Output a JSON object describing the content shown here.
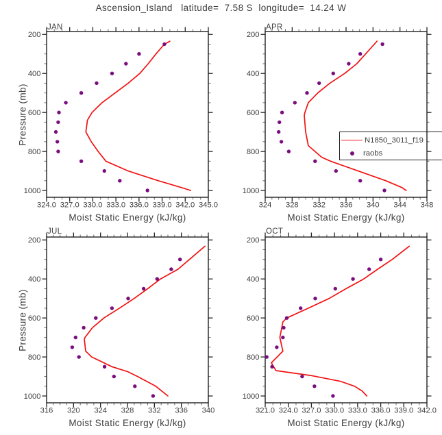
{
  "page_title": "Ascension_Island   latitude=  7.58 S  longitude=  14.24 W",
  "colors": {
    "model_line": "#f21111",
    "obs_dot": "#7a0e7e",
    "frame": "#1f1f1f",
    "text": "#3d3d3d"
  },
  "legend": {
    "entries": [
      {
        "label": "N1850_3011_f19",
        "type": "line",
        "color": "#f21111"
      },
      {
        "label": "raobs",
        "type": "dot",
        "color": "#7a0e7e"
      }
    ]
  },
  "chart_data": [
    {
      "type": "line",
      "title": "JAN",
      "xlabel": "Moist Static Energy (kJ/kg)",
      "ylabel": "Pressure (mb)",
      "xlim": [
        324,
        345
      ],
      "xtick_values": [
        324,
        327,
        330,
        333,
        336,
        339,
        342,
        345
      ],
      "xtick_labels": [
        "324.0",
        "327.0",
        "330.0",
        "333.0",
        "336.0",
        "339.0",
        "342.0",
        "345.0"
      ],
      "x_minor_step": 1,
      "ylim": [
        200,
        1000
      ],
      "y_axis_inverted": true,
      "ytick_values": [
        200,
        400,
        600,
        800,
        1000
      ],
      "ytick_labels": [
        "200",
        "400",
        "600",
        "800",
        "1000"
      ],
      "y_minor_step": 50,
      "grid": false,
      "points_format": "[pressure_mb, mse_kJ_per_kg]",
      "series": [
        {
          "name": "N1850_3011_f19",
          "type": "line",
          "color": "#f21111",
          "points": [
            [
              235,
              340.0
            ],
            [
              250,
              339.3
            ],
            [
              300,
              338.2
            ],
            [
              350,
              337.2
            ],
            [
              400,
              336.1
            ],
            [
              450,
              334.6
            ],
            [
              500,
              332.9
            ],
            [
              550,
              331.2
            ],
            [
              600,
              329.9
            ],
            [
              640,
              329.3
            ],
            [
              700,
              329.1
            ],
            [
              750,
              329.8
            ],
            [
              800,
              330.7
            ],
            [
              850,
              331.7
            ],
            [
              900,
              334.6
            ],
            [
              950,
              338.5
            ],
            [
              985,
              341.5
            ],
            [
              1000,
              342.7
            ]
          ]
        },
        {
          "name": "raobs",
          "type": "scatter",
          "color": "#7a0e7e",
          "points": [
            [
              250,
              339.3
            ],
            [
              300,
              336.0
            ],
            [
              350,
              334.3
            ],
            [
              400,
              332.5
            ],
            [
              450,
              330.5
            ],
            [
              500,
              328.5
            ],
            [
              550,
              326.5
            ],
            [
              600,
              325.6
            ],
            [
              650,
              325.5
            ],
            [
              700,
              325.2
            ],
            [
              750,
              325.4
            ],
            [
              800,
              325.5
            ],
            [
              850,
              328.5
            ],
            [
              900,
              331.5
            ],
            [
              950,
              333.5
            ],
            [
              1000,
              337.1
            ]
          ]
        }
      ]
    },
    {
      "type": "line",
      "title": "APR",
      "xlabel": "Moist Static Energy (kJ/kg)",
      "ylabel": "Pressure (mb)",
      "xlim": [
        324,
        348
      ],
      "xtick_values": [
        324,
        328,
        332,
        336,
        340,
        344,
        348
      ],
      "xtick_labels": [
        "324",
        "328",
        "332",
        "336",
        "340",
        "344",
        "348"
      ],
      "x_minor_step": 1,
      "ylim": [
        200,
        1000
      ],
      "y_axis_inverted": true,
      "ytick_values": [
        200,
        400,
        600,
        800,
        1000
      ],
      "ytick_labels": [
        "200",
        "400",
        "600",
        "800",
        "1000"
      ],
      "y_minor_step": 50,
      "grid": false,
      "points_format": "[pressure_mb, mse_kJ_per_kg]",
      "series": [
        {
          "name": "N1850_3011_f19",
          "type": "line",
          "color": "#f21111",
          "points": [
            [
              234,
              340.6
            ],
            [
              250,
              340.2
            ],
            [
              300,
              338.9
            ],
            [
              350,
              337.6
            ],
            [
              400,
              335.8
            ],
            [
              450,
              333.6
            ],
            [
              500,
              331.8
            ],
            [
              550,
              330.4
            ],
            [
              600,
              329.9
            ],
            [
              615,
              329.8
            ],
            [
              700,
              330.0
            ],
            [
              770,
              330.4
            ],
            [
              830,
              332.4
            ],
            [
              850,
              333.7
            ],
            [
              900,
              337.8
            ],
            [
              950,
              341.9
            ],
            [
              985,
              344.3
            ],
            [
              1000,
              344.9
            ]
          ]
        },
        {
          "name": "raobs",
          "type": "scatter",
          "color": "#7a0e7e",
          "points": [
            [
              250,
              341.4
            ],
            [
              300,
              338.1
            ],
            [
              350,
              336.4
            ],
            [
              400,
              334.1
            ],
            [
              450,
              332.0
            ],
            [
              500,
              330.2
            ],
            [
              550,
              328.4
            ],
            [
              600,
              326.5
            ],
            [
              650,
              326.1
            ],
            [
              700,
              326.0
            ],
            [
              750,
              326.4
            ],
            [
              800,
              327.5
            ],
            [
              850,
              331.4
            ],
            [
              900,
              334.5
            ],
            [
              950,
              338.1
            ],
            [
              1000,
              341.7
            ]
          ]
        }
      ]
    },
    {
      "type": "line",
      "title": "JUL",
      "xlabel": "Moist Static Energy (kJ/kg)",
      "ylabel": "Pressure (mb)",
      "xlim": [
        316,
        340
      ],
      "xtick_values": [
        316,
        320,
        324,
        328,
        332,
        336,
        340
      ],
      "xtick_labels": [
        "316",
        "320",
        "324",
        "328",
        "332",
        "336",
        "340"
      ],
      "x_minor_step": 1,
      "ylim": [
        200,
        1000
      ],
      "y_axis_inverted": true,
      "ytick_values": [
        200,
        400,
        600,
        800,
        1000
      ],
      "ytick_labels": [
        "200",
        "400",
        "600",
        "800",
        "1000"
      ],
      "y_minor_step": 50,
      "grid": false,
      "points_format": "[pressure_mb, mse_kJ_per_kg]",
      "series": [
        {
          "name": "N1850_3011_f19",
          "type": "line",
          "color": "#f21111",
          "points": [
            [
              232,
              339.5
            ],
            [
              300,
              337.2
            ],
            [
              350,
              335.5
            ],
            [
              400,
              332.9
            ],
            [
              450,
              331.0
            ],
            [
              500,
              329.0
            ],
            [
              550,
              326.8
            ],
            [
              600,
              324.5
            ],
            [
              650,
              322.8
            ],
            [
              700,
              321.7
            ],
            [
              710,
              321.6
            ],
            [
              770,
              321.8
            ],
            [
              800,
              322.7
            ],
            [
              850,
              325.7
            ],
            [
              875,
              328.0
            ],
            [
              900,
              329.5
            ],
            [
              950,
              332.2
            ],
            [
              1000,
              334.0
            ]
          ]
        },
        {
          "name": "raobs",
          "type": "scatter",
          "color": "#7a0e7e",
          "points": [
            [
              300,
              335.8
            ],
            [
              350,
              334.5
            ],
            [
              400,
              332.4
            ],
            [
              450,
              330.4
            ],
            [
              500,
              328.1
            ],
            [
              550,
              325.7
            ],
            [
              600,
              323.3
            ],
            [
              650,
              321.5
            ],
            [
              700,
              320.3
            ],
            [
              750,
              319.8
            ],
            [
              800,
              320.8
            ],
            [
              850,
              324.6
            ],
            [
              900,
              326.0
            ],
            [
              950,
              329.1
            ],
            [
              1000,
              331.8
            ]
          ]
        }
      ]
    },
    {
      "type": "line",
      "title": "OCT",
      "xlabel": "Moist Static Energy (kJ/kg)",
      "ylabel": "Pressure (mb)",
      "xlim": [
        321,
        342
      ],
      "xtick_values": [
        321,
        324,
        327,
        330,
        333,
        336,
        339,
        342
      ],
      "xtick_labels": [
        "321.0",
        "324.0",
        "327.0",
        "330.0",
        "333.0",
        "336.0",
        "339.0",
        "342.0"
      ],
      "x_minor_step": 1,
      "ylim": [
        200,
        1000
      ],
      "y_axis_inverted": true,
      "ytick_values": [
        200,
        400,
        600,
        800,
        1000
      ],
      "ytick_labels": [
        "200",
        "400",
        "600",
        "800",
        "1000"
      ],
      "y_minor_step": 50,
      "grid": false,
      "points_format": "[pressure_mb, mse_kJ_per_kg]",
      "series": [
        {
          "name": "N1850_3011_f19",
          "type": "line",
          "color": "#f21111",
          "points": [
            [
              232,
              339.7
            ],
            [
              300,
              337.5
            ],
            [
              350,
              335.6
            ],
            [
              400,
              333.8
            ],
            [
              450,
              331.5
            ],
            [
              500,
              329.3
            ],
            [
              550,
              326.6
            ],
            [
              600,
              323.8
            ],
            [
              620,
              323.3
            ],
            [
              700,
              322.9
            ],
            [
              770,
              323.3
            ],
            [
              830,
              321.8
            ],
            [
              870,
              322.4
            ],
            [
              895,
              326.9
            ],
            [
              925,
              330.8
            ],
            [
              950,
              332.6
            ],
            [
              975,
              333.6
            ],
            [
              1000,
              334.2
            ]
          ]
        },
        {
          "name": "raobs",
          "type": "scatter",
          "color": "#7a0e7e",
          "points": [
            [
              300,
              336.0
            ],
            [
              350,
              334.5
            ],
            [
              400,
              332.4
            ],
            [
              450,
              330.1
            ],
            [
              500,
              327.5
            ],
            [
              550,
              325.6
            ],
            [
              600,
              323.8
            ],
            [
              650,
              323.4
            ],
            [
              700,
              323.3
            ],
            [
              750,
              322.5
            ],
            [
              800,
              321.2
            ],
            [
              850,
              321.9
            ],
            [
              900,
              325.8
            ],
            [
              950,
              327.4
            ],
            [
              1000,
              329.8
            ]
          ]
        }
      ]
    }
  ]
}
